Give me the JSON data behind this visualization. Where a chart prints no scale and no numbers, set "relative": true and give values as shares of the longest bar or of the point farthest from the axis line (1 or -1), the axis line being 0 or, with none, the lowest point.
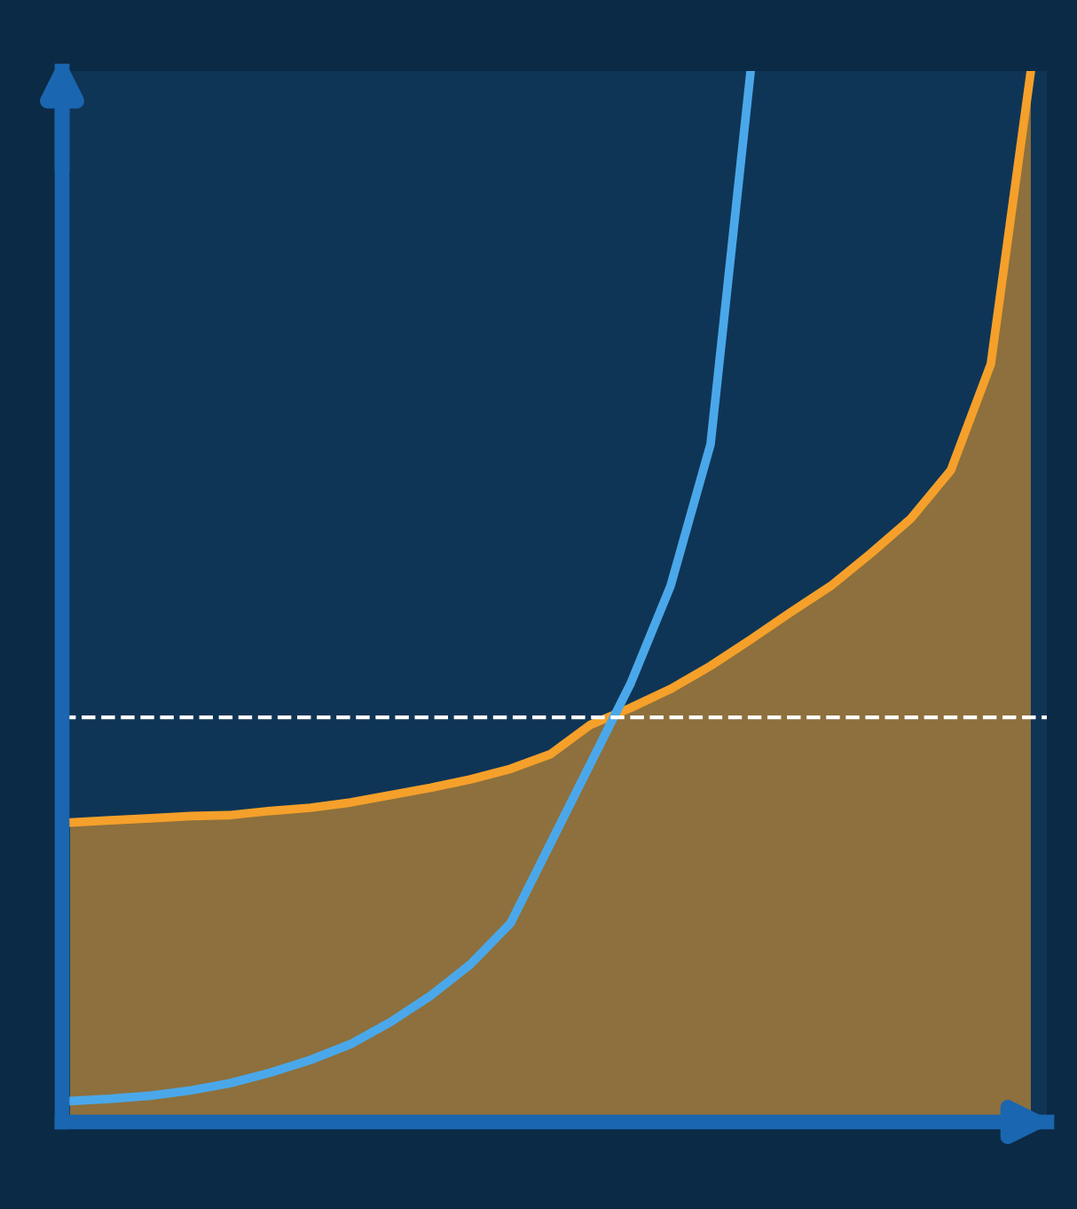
{
  "chart_data": {
    "type": "line",
    "relative": true,
    "categories": [
      null,
      null,
      null,
      null,
      null,
      null,
      null,
      null,
      null,
      null,
      null,
      null,
      null,
      null,
      null,
      null,
      null,
      null,
      null,
      null,
      null,
      null,
      null,
      null,
      null
    ],
    "series": [
      {
        "type": "area",
        "color": "#f5a02a",
        "values": [
          0.285,
          0.287,
          0.289,
          0.291,
          0.292,
          0.296,
          0.299,
          0.304,
          0.311,
          0.318,
          0.326,
          0.336,
          0.35,
          0.378,
          0.394,
          0.412,
          0.434,
          0.459,
          0.485,
          0.51,
          0.541,
          0.574,
          0.62,
          0.721,
          1
        ]
      },
      {
        "color": "#4aa8ea",
        "values": [
          0.02,
          0.022,
          0.025,
          0.03,
          0.037,
          0.047,
          0.059,
          0.074,
          0.095,
          0.12,
          0.15,
          0.189,
          0.265,
          0.341,
          0.417,
          0.51,
          0.645,
          1,
          null,
          null,
          null,
          null,
          null,
          null,
          null
        ]
      }
    ],
    "ref_lines": [
      {
        "axis": "y",
        "value": 0.385,
        "color": "#ffffff",
        "line_style": "dashed"
      }
    ],
    "legend": false,
    "tick_labels": false
  }
}
